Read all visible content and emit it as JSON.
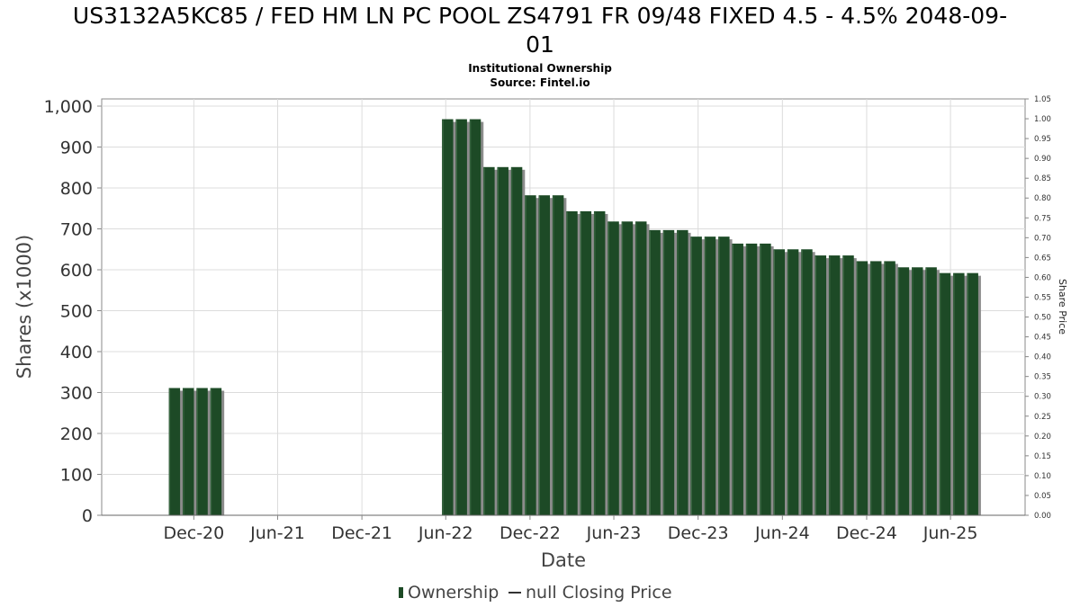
{
  "chart_data": {
    "type": "bar",
    "title_lines": [
      "US3132A5KC85 / FED HM LN PC POOL ZS4791 FR 09/48 FIXED 4.5 - 4.5% 2048-09-",
      "01"
    ],
    "subtitle_lines": [
      "Institutional Ownership",
      "Source: Fintel.io"
    ],
    "xlabel": "Date",
    "ylabel": "Shares (x1000)",
    "y2label": "Share Price",
    "ylim": [
      0,
      1000
    ],
    "y2lim": [
      0,
      1.05
    ],
    "y_ticks": [
      "0",
      "100",
      "200",
      "300",
      "400",
      "500",
      "600",
      "700",
      "800",
      "900",
      "1,000"
    ],
    "y2_ticks": [
      "0.00",
      "0.05",
      "0.10",
      "0.15",
      "0.20",
      "0.25",
      "0.30",
      "0.35",
      "0.40",
      "0.45",
      "0.50",
      "0.55",
      "0.60",
      "0.65",
      "0.70",
      "0.75",
      "0.80",
      "0.85",
      "0.90",
      "0.95",
      "1.00",
      "1.05"
    ],
    "x_tick_labels": [
      {
        "label": "Dec-20",
        "date": "2020-12-01"
      },
      {
        "label": "Jun-21",
        "date": "2021-06-01"
      },
      {
        "label": "Dec-21",
        "date": "2021-12-01"
      },
      {
        "label": "Jun-22",
        "date": "2022-06-01"
      },
      {
        "label": "Dec-22",
        "date": "2022-12-01"
      },
      {
        "label": "Jun-23",
        "date": "2023-06-01"
      },
      {
        "label": "Dec-23",
        "date": "2023-12-01"
      },
      {
        "label": "Jun-24",
        "date": "2024-06-01"
      },
      {
        "label": "Dec-24",
        "date": "2024-12-01"
      },
      {
        "label": "Jun-25",
        "date": "2025-06-01"
      }
    ],
    "x_range": [
      "2020-05-15",
      "2025-11-10"
    ],
    "grid": true,
    "legend": {
      "position": "bottom",
      "items": [
        {
          "label": "Ownership",
          "symbol": "bar",
          "color": "#1d4a26"
        },
        {
          "label": "null Closing Price",
          "symbol": "line",
          "color": "#333333"
        }
      ]
    },
    "series": [
      {
        "name": "Ownership",
        "color": "#1d4a26",
        "points": [
          {
            "x": "2020-10-20",
            "y": 311
          },
          {
            "x": "2020-11-19",
            "y": 311
          },
          {
            "x": "2020-12-19",
            "y": 311
          },
          {
            "x": "2021-01-18",
            "y": 311
          },
          {
            "x": "2022-06-05",
            "y": 968
          },
          {
            "x": "2022-07-05",
            "y": 968
          },
          {
            "x": "2022-08-04",
            "y": 968
          },
          {
            "x": "2022-09-03",
            "y": 851
          },
          {
            "x": "2022-10-03",
            "y": 851
          },
          {
            "x": "2022-11-02",
            "y": 851
          },
          {
            "x": "2022-12-02",
            "y": 782
          },
          {
            "x": "2023-01-01",
            "y": 782
          },
          {
            "x": "2023-01-31",
            "y": 782
          },
          {
            "x": "2023-03-02",
            "y": 743
          },
          {
            "x": "2023-04-01",
            "y": 743
          },
          {
            "x": "2023-05-01",
            "y": 743
          },
          {
            "x": "2023-05-31",
            "y": 718
          },
          {
            "x": "2023-06-30",
            "y": 718
          },
          {
            "x": "2023-07-30",
            "y": 718
          },
          {
            "x": "2023-08-29",
            "y": 697
          },
          {
            "x": "2023-09-28",
            "y": 697
          },
          {
            "x": "2023-10-28",
            "y": 697
          },
          {
            "x": "2023-11-27",
            "y": 681
          },
          {
            "x": "2023-12-27",
            "y": 681
          },
          {
            "x": "2024-01-26",
            "y": 681
          },
          {
            "x": "2024-02-25",
            "y": 664
          },
          {
            "x": "2024-03-26",
            "y": 664
          },
          {
            "x": "2024-04-25",
            "y": 664
          },
          {
            "x": "2024-05-25",
            "y": 650
          },
          {
            "x": "2024-06-24",
            "y": 650
          },
          {
            "x": "2024-07-24",
            "y": 650
          },
          {
            "x": "2024-08-23",
            "y": 635
          },
          {
            "x": "2024-09-22",
            "y": 635
          },
          {
            "x": "2024-10-22",
            "y": 635
          },
          {
            "x": "2024-11-21",
            "y": 621
          },
          {
            "x": "2024-12-21",
            "y": 621
          },
          {
            "x": "2025-01-20",
            "y": 621
          },
          {
            "x": "2025-02-19",
            "y": 606
          },
          {
            "x": "2025-03-21",
            "y": 606
          },
          {
            "x": "2025-04-20",
            "y": 606
          },
          {
            "x": "2025-05-20",
            "y": 592
          },
          {
            "x": "2025-06-19",
            "y": 592
          },
          {
            "x": "2025-07-19",
            "y": 592
          }
        ]
      }
    ]
  }
}
